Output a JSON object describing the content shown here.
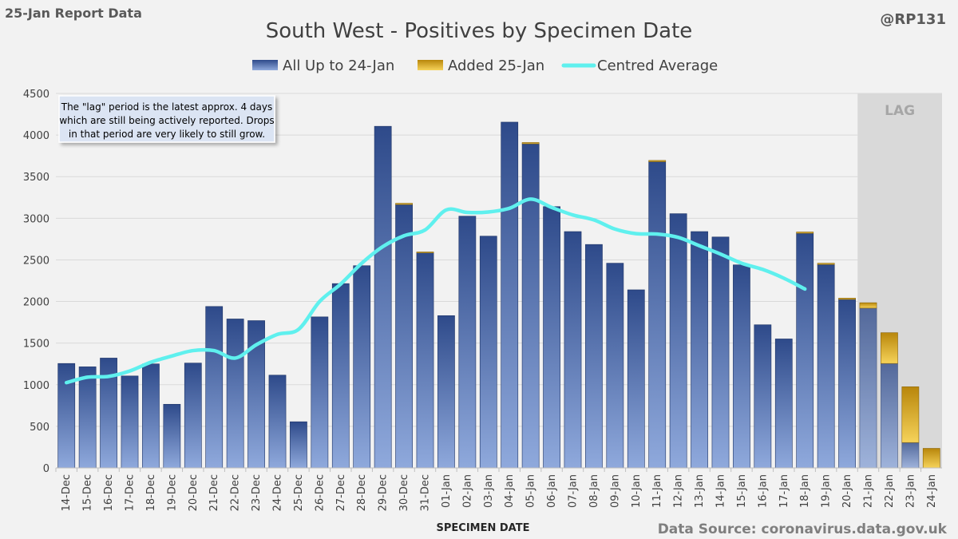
{
  "header": {
    "report_label": "25-Jan Report Data",
    "handle": "@RP131"
  },
  "footer": {
    "source": "Data Source: coronavirus.data.gov.uk"
  },
  "colors": {
    "base_dark": "#2e4a8a",
    "base_light": "#8fa9dc",
    "added_dark": "#b8860b",
    "added_light": "#f6d35a",
    "average": "#5ff0ee",
    "lag_region": "#d9d9d9"
  },
  "chart_data": {
    "type": "bar",
    "stacked": true,
    "title": "South West - Positives by Specimen Date",
    "xlabel": "SPECIMEN DATE",
    "ylabel": "",
    "ylim": [
      0,
      4500
    ],
    "yticks": [
      0,
      500,
      1000,
      1500,
      2000,
      2500,
      3000,
      3500,
      4000,
      4500
    ],
    "grid": true,
    "legend_position": "top",
    "categories": [
      "14-Dec",
      "15-Dec",
      "16-Dec",
      "17-Dec",
      "18-Dec",
      "19-Dec",
      "20-Dec",
      "21-Dec",
      "22-Dec",
      "23-Dec",
      "24-Dec",
      "25-Dec",
      "26-Dec",
      "27-Dec",
      "28-Dec",
      "29-Dec",
      "30-Dec",
      "31-Dec",
      "01-Jan",
      "02-Jan",
      "03-Jan",
      "04-Jan",
      "05-Jan",
      "06-Jan",
      "07-Jan",
      "08-Jan",
      "09-Jan",
      "10-Jan",
      "11-Jan",
      "12-Jan",
      "13-Jan",
      "14-Jan",
      "15-Jan",
      "16-Jan",
      "17-Jan",
      "18-Jan",
      "19-Jan",
      "20-Jan",
      "21-Jan",
      "22-Jan",
      "23-Jan",
      "24-Jan"
    ],
    "series": [
      {
        "name": "All Up to 24-Jan",
        "values": [
          1255,
          1215,
          1320,
          1105,
          1250,
          765,
          1260,
          1940,
          1790,
          1770,
          1115,
          555,
          1815,
          2215,
          2430,
          4105,
          3165,
          2585,
          1830,
          3025,
          2785,
          4155,
          3895,
          3140,
          2840,
          2685,
          2460,
          2140,
          3680,
          3055,
          2840,
          2775,
          2440,
          1720,
          1550,
          2820,
          2445,
          2025,
          1920,
          1255,
          305,
          0
        ]
      },
      {
        "name": "Added 25-Jan",
        "values": [
          0,
          0,
          0,
          0,
          0,
          0,
          0,
          0,
          0,
          0,
          0,
          0,
          0,
          0,
          0,
          0,
          15,
          10,
          0,
          0,
          0,
          0,
          15,
          0,
          0,
          0,
          0,
          0,
          15,
          0,
          0,
          0,
          0,
          0,
          0,
          15,
          15,
          15,
          65,
          370,
          670,
          235
        ]
      },
      {
        "name": "Centred Average",
        "type": "line",
        "values": [
          1025,
          1090,
          1100,
          1165,
          1270,
          1345,
          1410,
          1410,
          1320,
          1480,
          1605,
          1665,
          2000,
          2210,
          2460,
          2660,
          2790,
          2860,
          3100,
          3070,
          3075,
          3120,
          3230,
          3130,
          3040,
          2980,
          2870,
          2815,
          2810,
          2770,
          2670,
          2570,
          2460,
          2385,
          2280,
          2150,
          null,
          null,
          null,
          null,
          null,
          null
        ]
      }
    ],
    "annotations": [
      {
        "lines": [
          "The \"lag\" period is the latest approx. 4 days",
          "which are still being actively reported.  Drops",
          "in that period are very likely to still grow."
        ]
      },
      {
        "text": "LAG",
        "from": "21-Jan",
        "to": "24-Jan"
      }
    ]
  }
}
